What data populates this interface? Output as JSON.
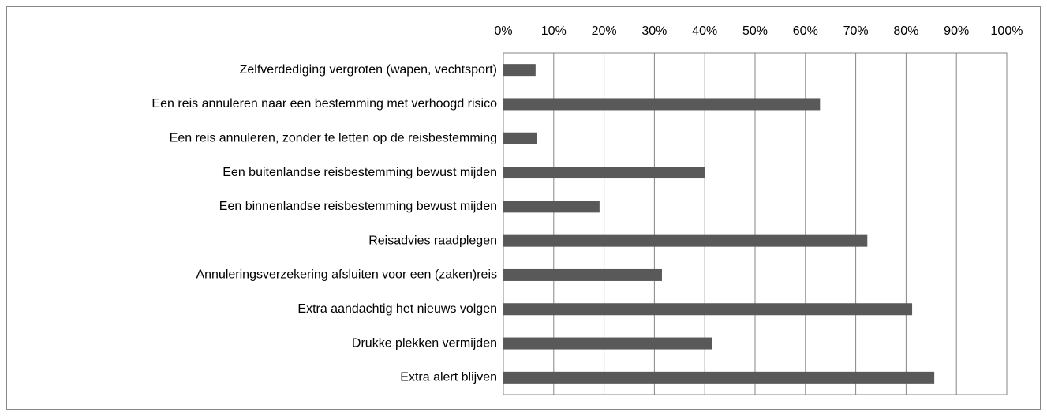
{
  "chart_data": {
    "type": "barh",
    "categories": [
      "Zelfverdediging vergroten (wapen, vechtsport)",
      "Een reis annuleren naar een bestemming met verhoogd risico",
      "Een reis annuleren, zonder te letten op de reisbestemming",
      "Een buitenlandse reisbestemming bewust mijden",
      "Een binnenlandse reisbestemming bewust mijden",
      "Reisadvies raadplegen",
      "Annuleringsverzekering afsluiten voor een (zaken)reis",
      "Extra aandachtig het nieuws volgen",
      "Drukke plekken vermijden",
      "Extra alert blijven"
    ],
    "values": [
      6.4,
      62.9,
      6.7,
      40.0,
      19.1,
      72.3,
      31.5,
      81.2,
      41.5,
      85.6
    ],
    "color": "#595959",
    "xlim": [
      0,
      100
    ],
    "xticks": [
      {
        "value": 0,
        "label": "0%"
      },
      {
        "value": 10,
        "label": "10%"
      },
      {
        "value": 20,
        "label": "20%"
      },
      {
        "value": 30,
        "label": "30%"
      },
      {
        "value": 40,
        "label": "40%"
      },
      {
        "value": 50,
        "label": "50%"
      },
      {
        "value": 60,
        "label": "60%"
      },
      {
        "value": 70,
        "label": "70%"
      },
      {
        "value": 80,
        "label": "80%"
      },
      {
        "value": 90,
        "label": "90%"
      },
      {
        "value": 100,
        "label": "100%"
      }
    ],
    "grid": true
  }
}
